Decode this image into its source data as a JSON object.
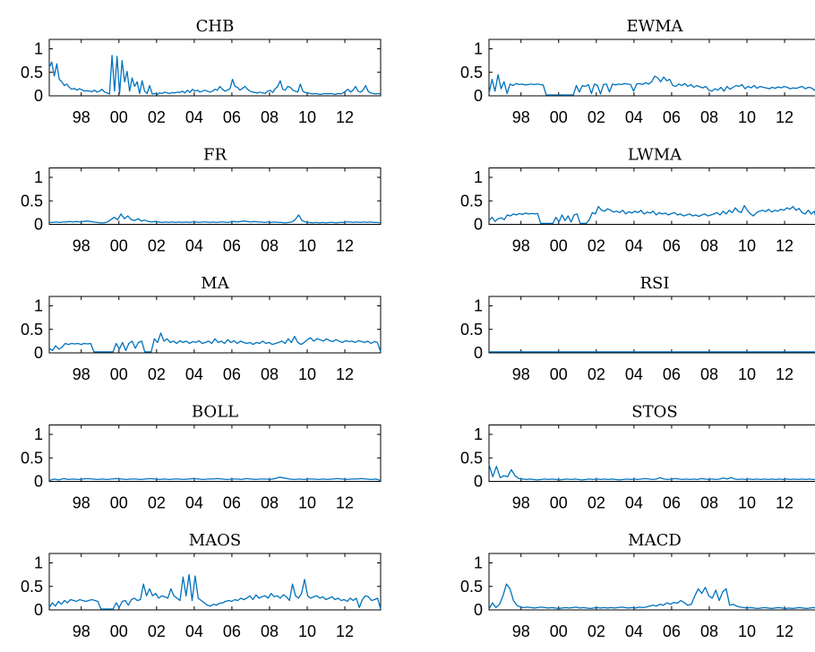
{
  "chart_data": [
    {
      "type": "line",
      "title": "CHB",
      "ylim": [
        0,
        1.2
      ],
      "yticks": [
        0,
        0.5,
        1
      ],
      "ytick_labels": [
        "0",
        "0.5",
        "1"
      ],
      "xlim": [
        1996.3,
        2013.9
      ],
      "xticks": [
        1998,
        2000,
        2002,
        2004,
        2006,
        2008,
        2010,
        2012
      ],
      "xtick_labels": [
        "98",
        "00",
        "02",
        "04",
        "06",
        "08",
        "10",
        "12"
      ],
      "x_range": [
        1996.3,
        2013.9
      ],
      "values": [
        0.6,
        0.72,
        0.42,
        0.68,
        0.35,
        0.3,
        0.22,
        0.25,
        0.18,
        0.14,
        0.16,
        0.12,
        0.15,
        0.13,
        0.1,
        0.11,
        0.1,
        0.09,
        0.12,
        0.08,
        0.1,
        0.14,
        0.08,
        0.06,
        0.04,
        0.86,
        0.1,
        0.84,
        0.05,
        0.75,
        0.3,
        0.52,
        0.1,
        0.38,
        0.2,
        0.3,
        0.05,
        0.32,
        0.1,
        0.05,
        0.22,
        0.04,
        0.05,
        0.03,
        0.06,
        0.05,
        0.08,
        0.06,
        0.05,
        0.07,
        0.06,
        0.08,
        0.07,
        0.1,
        0.06,
        0.12,
        0.07,
        0.14,
        0.1,
        0.12,
        0.08,
        0.1,
        0.12,
        0.1,
        0.08,
        0.1,
        0.14,
        0.12,
        0.2,
        0.14,
        0.1,
        0.12,
        0.15,
        0.35,
        0.2,
        0.18,
        0.12,
        0.16,
        0.2,
        0.14,
        0.1,
        0.08,
        0.07,
        0.06,
        0.08,
        0.06,
        0.05,
        0.1,
        0.12,
        0.07,
        0.15,
        0.2,
        0.32,
        0.14,
        0.12,
        0.2,
        0.18,
        0.12,
        0.1,
        0.08,
        0.25,
        0.1,
        0.07,
        0.06,
        0.05,
        0.04,
        0.05,
        0.04,
        0.03,
        0.04,
        0.05,
        0.04,
        0.05,
        0.04,
        0.03,
        0.05,
        0.04,
        0.06,
        0.1,
        0.14,
        0.08,
        0.12,
        0.2,
        0.1,
        0.08,
        0.12,
        0.22,
        0.1,
        0.06,
        0.05,
        0.04,
        0.05,
        0.04
      ]
    },
    {
      "type": "line",
      "title": "EWMA",
      "ylim": [
        0,
        1.2
      ],
      "yticks": [
        0,
        0.5,
        1
      ],
      "ytick_labels": [
        "0",
        "0.5",
        "1"
      ],
      "xlim": [
        1996.3,
        2013.9
      ],
      "xticks": [
        1998,
        2000,
        2002,
        2004,
        2006,
        2008,
        2010,
        2012
      ],
      "xtick_labels": [
        "98",
        "00",
        "02",
        "04",
        "06",
        "08",
        "10",
        "12"
      ],
      "x_range": [
        1996.3,
        2013.9
      ],
      "values": [
        0.05,
        0.35,
        0.1,
        0.45,
        0.15,
        0.3,
        0.05,
        0.25,
        0.22,
        0.26,
        0.24,
        0.25,
        0.23,
        0.24,
        0.25,
        0.24,
        0.25,
        0.24,
        0.23,
        0.02,
        0.02,
        0.02,
        0.02,
        0.02,
        0.02,
        0.02,
        0.02,
        0.02,
        0.02,
        0.22,
        0.08,
        0.22,
        0.2,
        0.24,
        0.05,
        0.25,
        0.22,
        0.04,
        0.24,
        0.25,
        0.08,
        0.25,
        0.23,
        0.25,
        0.24,
        0.26,
        0.25,
        0.24,
        0.1,
        0.25,
        0.26,
        0.24,
        0.28,
        0.25,
        0.3,
        0.42,
        0.38,
        0.3,
        0.4,
        0.32,
        0.35,
        0.22,
        0.2,
        0.25,
        0.22,
        0.26,
        0.2,
        0.24,
        0.18,
        0.22,
        0.19,
        0.17,
        0.2,
        0.12,
        0.1,
        0.15,
        0.12,
        0.18,
        0.1,
        0.2,
        0.14,
        0.18,
        0.22,
        0.2,
        0.24,
        0.15,
        0.2,
        0.17,
        0.22,
        0.16,
        0.2,
        0.18,
        0.17,
        0.15,
        0.18,
        0.16,
        0.19,
        0.17,
        0.2,
        0.18,
        0.15,
        0.17,
        0.16,
        0.18,
        0.2,
        0.15,
        0.18,
        0.17,
        0.12,
        0.15,
        0.06
      ]
    },
    {
      "type": "line",
      "title": "FR",
      "ylim": [
        0,
        1.2
      ],
      "yticks": [
        0,
        0.5,
        1
      ],
      "ytick_labels": [
        "0",
        "0.5",
        "1"
      ],
      "xlim": [
        1996.3,
        2013.9
      ],
      "xticks": [
        1998,
        2000,
        2002,
        2004,
        2006,
        2008,
        2010,
        2012
      ],
      "xtick_labels": [
        "98",
        "00",
        "02",
        "04",
        "06",
        "08",
        "10",
        "12"
      ],
      "x_range": [
        1996.3,
        2013.9
      ],
      "values": [
        0.04,
        0.04,
        0.05,
        0.04,
        0.05,
        0.05,
        0.06,
        0.05,
        0.06,
        0.05,
        0.06,
        0.07,
        0.06,
        0.05,
        0.04,
        0.03,
        0.03,
        0.05,
        0.1,
        0.15,
        0.1,
        0.22,
        0.12,
        0.18,
        0.1,
        0.08,
        0.12,
        0.07,
        0.09,
        0.06,
        0.05,
        0.06,
        0.05,
        0.04,
        0.05,
        0.04,
        0.05,
        0.04,
        0.05,
        0.04,
        0.05,
        0.04,
        0.05,
        0.05,
        0.04,
        0.05,
        0.05,
        0.04,
        0.05,
        0.04,
        0.05,
        0.05,
        0.04,
        0.05,
        0.06,
        0.05,
        0.06,
        0.07,
        0.06,
        0.05,
        0.06,
        0.05,
        0.05,
        0.04,
        0.05,
        0.04,
        0.05,
        0.04,
        0.04,
        0.03,
        0.04,
        0.05,
        0.1,
        0.2,
        0.08,
        0.05,
        0.04,
        0.03,
        0.04,
        0.03,
        0.04,
        0.03,
        0.04,
        0.04,
        0.03,
        0.04,
        0.04,
        0.05,
        0.05,
        0.04,
        0.05,
        0.04,
        0.05,
        0.04,
        0.05,
        0.04,
        0.04,
        0.03
      ]
    },
    {
      "type": "line",
      "title": "LWMA",
      "ylim": [
        0,
        1.2
      ],
      "yticks": [
        0,
        0.5,
        1
      ],
      "ytick_labels": [
        "0",
        "0.5",
        "1"
      ],
      "xlim": [
        1996.3,
        2013.9
      ],
      "xticks": [
        1998,
        2000,
        2002,
        2004,
        2006,
        2008,
        2010,
        2012
      ],
      "xtick_labels": [
        "98",
        "00",
        "02",
        "04",
        "06",
        "08",
        "10",
        "12"
      ],
      "x_range": [
        1996.3,
        2013.9
      ],
      "values": [
        0.08,
        0.15,
        0.06,
        0.12,
        0.14,
        0.1,
        0.2,
        0.18,
        0.22,
        0.2,
        0.23,
        0.21,
        0.24,
        0.22,
        0.23,
        0.22,
        0.23,
        0.02,
        0.02,
        0.02,
        0.02,
        0.02,
        0.15,
        0.05,
        0.2,
        0.08,
        0.18,
        0.05,
        0.2,
        0.22,
        0.02,
        0.02,
        0.02,
        0.1,
        0.25,
        0.22,
        0.38,
        0.3,
        0.28,
        0.33,
        0.3,
        0.26,
        0.28,
        0.25,
        0.3,
        0.22,
        0.27,
        0.24,
        0.28,
        0.25,
        0.3,
        0.22,
        0.26,
        0.24,
        0.28,
        0.2,
        0.25,
        0.22,
        0.24,
        0.2,
        0.23,
        0.25,
        0.2,
        0.22,
        0.18,
        0.2,
        0.22,
        0.18,
        0.2,
        0.17,
        0.2,
        0.22,
        0.18,
        0.2,
        0.22,
        0.25,
        0.2,
        0.28,
        0.22,
        0.3,
        0.25,
        0.35,
        0.28,
        0.25,
        0.4,
        0.3,
        0.22,
        0.18,
        0.25,
        0.28,
        0.3,
        0.27,
        0.32,
        0.26,
        0.3,
        0.28,
        0.32,
        0.3,
        0.35,
        0.32,
        0.38,
        0.3,
        0.34,
        0.25,
        0.22,
        0.3,
        0.22,
        0.28,
        0.04,
        0.05
      ]
    },
    {
      "type": "line",
      "title": "MA",
      "ylim": [
        0,
        1.2
      ],
      "yticks": [
        0,
        0.5,
        1
      ],
      "ytick_labels": [
        "0",
        "0.5",
        "1"
      ],
      "xlim": [
        1996.3,
        2013.9
      ],
      "xticks": [
        1998,
        2000,
        2002,
        2004,
        2006,
        2008,
        2010,
        2012
      ],
      "xtick_labels": [
        "98",
        "00",
        "02",
        "04",
        "06",
        "08",
        "10",
        "12"
      ],
      "x_range": [
        1996.3,
        2013.9
      ],
      "values": [
        0.1,
        0.05,
        0.15,
        0.08,
        0.12,
        0.2,
        0.18,
        0.2,
        0.19,
        0.2,
        0.18,
        0.2,
        0.19,
        0.2,
        0.02,
        0.02,
        0.02,
        0.02,
        0.02,
        0.02,
        0.02,
        0.2,
        0.08,
        0.22,
        0.05,
        0.2,
        0.25,
        0.1,
        0.22,
        0.25,
        0.02,
        0.02,
        0.02,
        0.3,
        0.22,
        0.42,
        0.25,
        0.3,
        0.22,
        0.25,
        0.2,
        0.26,
        0.22,
        0.25,
        0.2,
        0.24,
        0.22,
        0.26,
        0.2,
        0.22,
        0.25,
        0.2,
        0.3,
        0.22,
        0.25,
        0.2,
        0.28,
        0.22,
        0.26,
        0.2,
        0.25,
        0.22,
        0.2,
        0.22,
        0.18,
        0.22,
        0.2,
        0.25,
        0.2,
        0.22,
        0.18,
        0.2,
        0.22,
        0.25,
        0.2,
        0.3,
        0.22,
        0.35,
        0.22,
        0.18,
        0.22,
        0.28,
        0.32,
        0.25,
        0.3,
        0.28,
        0.25,
        0.3,
        0.26,
        0.24,
        0.28,
        0.25,
        0.22,
        0.26,
        0.24,
        0.25,
        0.22,
        0.26,
        0.24,
        0.22,
        0.25,
        0.2,
        0.24,
        0.22,
        0.02
      ]
    },
    {
      "type": "line",
      "title": "RSI",
      "ylim": [
        0,
        1.2
      ],
      "yticks": [
        0,
        0.5,
        1
      ],
      "ytick_labels": [
        "0",
        "0.5",
        "1"
      ],
      "xlim": [
        1996.3,
        2013.9
      ],
      "xticks": [
        1998,
        2000,
        2002,
        2004,
        2006,
        2008,
        2010,
        2012
      ],
      "xtick_labels": [
        "98",
        "00",
        "02",
        "04",
        "06",
        "08",
        "10",
        "12"
      ],
      "x_range": [
        1996.3,
        2013.9
      ],
      "values": [
        0.02,
        0.02
      ]
    },
    {
      "type": "line",
      "title": "BOLL",
      "ylim": [
        0,
        1.2
      ],
      "yticks": [
        0,
        0.5,
        1
      ],
      "ytick_labels": [
        "0",
        "0.5",
        "1"
      ],
      "xlim": [
        1996.3,
        2013.9
      ],
      "xticks": [
        1998,
        2000,
        2002,
        2004,
        2006,
        2008,
        2010,
        2012
      ],
      "xtick_labels": [
        "98",
        "00",
        "02",
        "04",
        "06",
        "08",
        "10",
        "12"
      ],
      "x_range": [
        1996.3,
        2013.9
      ],
      "values": [
        0.02,
        0.05,
        0.03,
        0.06,
        0.04,
        0.05,
        0.04,
        0.05,
        0.06,
        0.05,
        0.04,
        0.05,
        0.04,
        0.05,
        0.06,
        0.05,
        0.04,
        0.05,
        0.05,
        0.04,
        0.05,
        0.06,
        0.05,
        0.04,
        0.05,
        0.04,
        0.05,
        0.05,
        0.04,
        0.05,
        0.06,
        0.05,
        0.04,
        0.05,
        0.05,
        0.06,
        0.05,
        0.04,
        0.05,
        0.05,
        0.04,
        0.06,
        0.05,
        0.04,
        0.05,
        0.05,
        0.04,
        0.06,
        0.09,
        0.07,
        0.05,
        0.04,
        0.05,
        0.04,
        0.05,
        0.05,
        0.04,
        0.05,
        0.04,
        0.05,
        0.06,
        0.05,
        0.04,
        0.05,
        0.05,
        0.06,
        0.05,
        0.04,
        0.05,
        0.02
      ]
    },
    {
      "type": "line",
      "title": "STOS",
      "ylim": [
        0,
        1.2
      ],
      "yticks": [
        0,
        0.5,
        1
      ],
      "ytick_labels": [
        "0",
        "0.5",
        "1"
      ],
      "xlim": [
        1996.3,
        2013.9
      ],
      "xticks": [
        1998,
        2000,
        2002,
        2004,
        2006,
        2008,
        2010,
        2012
      ],
      "xtick_labels": [
        "98",
        "00",
        "02",
        "04",
        "06",
        "08",
        "10",
        "12"
      ],
      "x_range": [
        1996.3,
        2013.9
      ],
      "values": [
        0.36,
        0.1,
        0.32,
        0.08,
        0.12,
        0.1,
        0.25,
        0.12,
        0.06,
        0.05,
        0.04,
        0.05,
        0.04,
        0.03,
        0.04,
        0.05,
        0.04,
        0.05,
        0.04,
        0.03,
        0.04,
        0.05,
        0.04,
        0.05,
        0.04,
        0.03,
        0.04,
        0.05,
        0.04,
        0.05,
        0.04,
        0.05,
        0.04,
        0.05,
        0.04,
        0.03,
        0.04,
        0.05,
        0.04,
        0.05,
        0.04,
        0.05,
        0.06,
        0.05,
        0.04,
        0.05,
        0.08,
        0.05,
        0.04,
        0.05,
        0.06,
        0.05,
        0.04,
        0.05,
        0.04,
        0.05,
        0.04,
        0.06,
        0.05,
        0.04,
        0.05,
        0.04,
        0.05,
        0.07,
        0.05,
        0.08,
        0.05,
        0.04,
        0.05,
        0.04,
        0.05,
        0.04,
        0.05,
        0.04,
        0.05,
        0.04,
        0.05,
        0.04,
        0.05,
        0.04,
        0.05,
        0.04,
        0.05,
        0.04,
        0.05,
        0.04,
        0.05,
        0.04,
        0.04,
        0.03
      ]
    },
    {
      "type": "line",
      "title": "MAOS",
      "ylim": [
        0,
        1.2
      ],
      "yticks": [
        0,
        0.5,
        1
      ],
      "ytick_labels": [
        "0",
        "0.5",
        "1"
      ],
      "xlim": [
        1996.3,
        2013.9
      ],
      "xticks": [
        1998,
        2000,
        2002,
        2004,
        2006,
        2008,
        2010,
        2012
      ],
      "xtick_labels": [
        "98",
        "00",
        "02",
        "04",
        "06",
        "08",
        "10",
        "12"
      ],
      "x_range": [
        1996.3,
        2013.9
      ],
      "values": [
        0.05,
        0.15,
        0.08,
        0.18,
        0.12,
        0.2,
        0.15,
        0.22,
        0.2,
        0.18,
        0.22,
        0.2,
        0.18,
        0.2,
        0.22,
        0.2,
        0.18,
        0.02,
        0.02,
        0.02,
        0.02,
        0.02,
        0.15,
        0.05,
        0.18,
        0.2,
        0.1,
        0.22,
        0.25,
        0.2,
        0.22,
        0.55,
        0.3,
        0.45,
        0.3,
        0.35,
        0.25,
        0.3,
        0.28,
        0.25,
        0.45,
        0.3,
        0.25,
        0.2,
        0.7,
        0.3,
        0.75,
        0.2,
        0.72,
        0.25,
        0.2,
        0.15,
        0.1,
        0.08,
        0.12,
        0.1,
        0.14,
        0.15,
        0.18,
        0.2,
        0.18,
        0.22,
        0.2,
        0.25,
        0.22,
        0.25,
        0.3,
        0.22,
        0.32,
        0.25,
        0.28,
        0.3,
        0.25,
        0.35,
        0.28,
        0.3,
        0.25,
        0.32,
        0.28,
        0.2,
        0.55,
        0.3,
        0.25,
        0.35,
        0.65,
        0.3,
        0.25,
        0.28,
        0.3,
        0.25,
        0.28,
        0.22,
        0.25,
        0.28,
        0.22,
        0.25,
        0.2,
        0.22,
        0.18,
        0.25,
        0.2,
        0.25,
        0.05,
        0.22,
        0.3,
        0.28,
        0.2,
        0.22,
        0.25,
        0.02
      ]
    },
    {
      "type": "line",
      "title": "MACD",
      "ylim": [
        0,
        1.2
      ],
      "yticks": [
        0,
        0.5,
        1
      ],
      "ytick_labels": [
        "0",
        "0.5",
        "1"
      ],
      "xlim": [
        1996.3,
        2013.9
      ],
      "xticks": [
        1998,
        2000,
        2002,
        2004,
        2006,
        2008,
        2010,
        2012
      ],
      "xtick_labels": [
        "98",
        "00",
        "02",
        "04",
        "06",
        "08",
        "10",
        "12"
      ],
      "x_range": [
        1996.3,
        2013.9
      ],
      "values": [
        0.02,
        0.15,
        0.05,
        0.12,
        0.3,
        0.55,
        0.45,
        0.2,
        0.1,
        0.06,
        0.05,
        0.06,
        0.05,
        0.04,
        0.05,
        0.06,
        0.05,
        0.04,
        0.05,
        0.04,
        0.03,
        0.04,
        0.05,
        0.04,
        0.05,
        0.06,
        0.04,
        0.05,
        0.04,
        0.03,
        0.04,
        0.05,
        0.04,
        0.05,
        0.04,
        0.05,
        0.04,
        0.05,
        0.06,
        0.05,
        0.04,
        0.05,
        0.04,
        0.06,
        0.05,
        0.06,
        0.08,
        0.1,
        0.08,
        0.12,
        0.1,
        0.15,
        0.12,
        0.16,
        0.14,
        0.2,
        0.15,
        0.1,
        0.12,
        0.3,
        0.45,
        0.35,
        0.48,
        0.3,
        0.25,
        0.42,
        0.2,
        0.38,
        0.45,
        0.1,
        0.12,
        0.08,
        0.06,
        0.05,
        0.04,
        0.05,
        0.04,
        0.03,
        0.04,
        0.05,
        0.04,
        0.03,
        0.04,
        0.05,
        0.04,
        0.03,
        0.04,
        0.03,
        0.04,
        0.05,
        0.04,
        0.03,
        0.04,
        0.05,
        0.04,
        0.02
      ]
    }
  ],
  "colors": {
    "line": "#0072BD",
    "axis": "#000000"
  }
}
